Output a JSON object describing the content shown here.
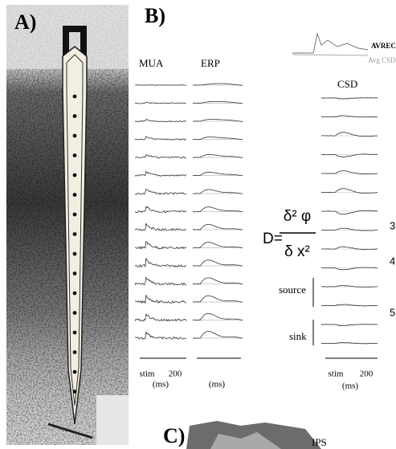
{
  "panel_a": {
    "label": "A)"
  },
  "panel_b": {
    "label": "B)",
    "columns": {
      "mua": "MUA",
      "erp": "ERP",
      "csd": "CSD"
    },
    "avrec_legend": {
      "avrec": "AVREC",
      "avg_csd": "Avg CSD"
    },
    "equation": {
      "lhs": "D=",
      "numerator": "δ² φ",
      "denominator": "δ x²"
    },
    "layer_labels": [
      "3",
      "4",
      "5"
    ],
    "current_labels": {
      "source": "source",
      "sink": "sink"
    },
    "time_axes": [
      {
        "stim": "stim",
        "tick": "200",
        "unit": "(ms)"
      },
      {
        "unit": "(ms)"
      },
      {
        "stim": "stim",
        "tick": "200",
        "unit": "(ms)"
      }
    ]
  },
  "panel_c": {
    "label": "C)",
    "region": "IPS"
  }
}
